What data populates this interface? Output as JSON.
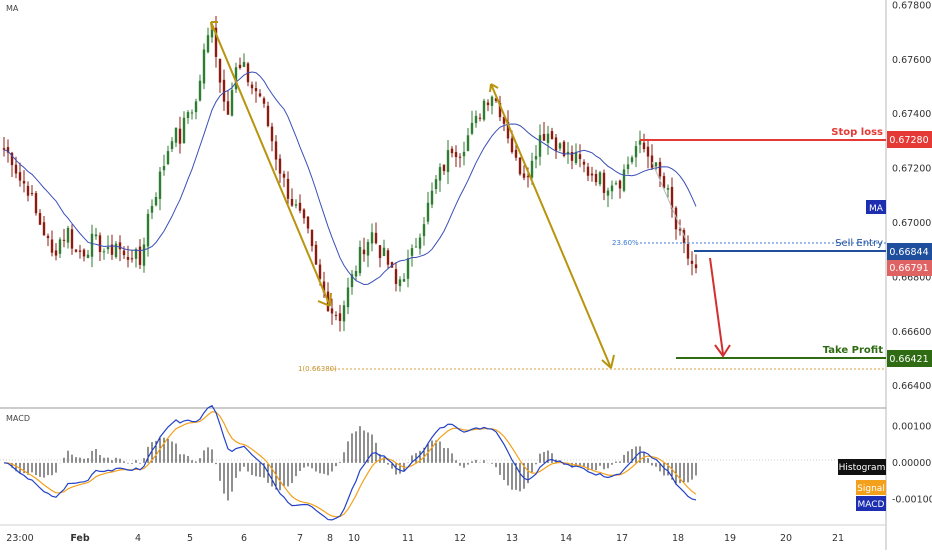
{
  "panels": {
    "main_title": "MA",
    "macd_title": "MACD"
  },
  "colors": {
    "up_candle": "#2f7d32",
    "down_candle": "#8b1c12",
    "ma": "#3a4fb8",
    "arrow_gold": "#b8940f",
    "stop": "#e53935",
    "entry": "#1f4f9c",
    "price": "#e06363",
    "profit": "#2e6b12",
    "macd_line": "#2342c8",
    "signal_line": "#f3a11c",
    "histogram": "#222222"
  },
  "price_axis": {
    "ticks": [
      "0.67800",
      "0.67600",
      "0.67400",
      "0.67200",
      "0.67000",
      "0.66800",
      "0.66600",
      "0.66400"
    ],
    "range": [
      0.6632,
      0.6782
    ]
  },
  "macd_axis": {
    "ticks": [
      "0.00100",
      "0.00000",
      "-0.00100"
    ],
    "range": [
      -0.0017,
      0.0015
    ]
  },
  "time_axis": {
    "labels": [
      "23:00",
      "Feb",
      "4",
      "5",
      "6",
      "7",
      "8",
      "10",
      "11",
      "12",
      "13",
      "14",
      "17",
      "18",
      "19",
      "20",
      "21"
    ]
  },
  "levels": {
    "stop_loss": {
      "label": "Stop loss",
      "value": "0.67280"
    },
    "sell_entry": {
      "label": "Sell Entry",
      "value": "0.66844"
    },
    "current": {
      "value": "0.66791"
    },
    "take_profit": {
      "label": "Take Profit",
      "value": "0.66421"
    },
    "fib_236": {
      "label": "23.60%"
    },
    "fib_1": {
      "label": "1(0.66380)",
      "value": "0.66380"
    }
  },
  "badges": {
    "ma": "MA",
    "histogram": "Histogram",
    "signal": "Signal",
    "macd": "MACD"
  },
  "chart_data": {
    "type": "candlestick",
    "instrument_title": "",
    "ohlc_close_path": {
      "x_index": [
        0,
        8,
        16,
        24,
        32,
        40,
        48,
        56,
        64,
        72,
        80,
        88,
        96,
        104,
        112,
        120,
        128,
        136,
        144,
        152,
        160,
        168,
        176,
        184,
        192,
        200,
        208,
        216,
        224,
        232,
        240,
        248,
        256,
        264,
        272,
        280,
        288,
        296,
        304,
        312,
        320,
        328,
        336,
        344,
        352,
        360,
        368,
        376,
        384,
        392,
        400,
        408,
        416,
        424,
        432,
        440,
        448,
        456,
        464,
        472,
        480,
        488,
        496,
        504,
        512,
        520,
        528,
        536,
        544,
        552,
        560,
        568,
        576,
        584,
        592,
        600,
        608,
        616,
        624,
        632,
        640,
        648,
        656,
        664,
        672,
        680,
        688,
        696
      ],
      "close": [
        0.6727,
        0.6724,
        0.6716,
        0.6713,
        0.6703,
        0.6697,
        0.6688,
        0.6694,
        0.6697,
        0.6689,
        0.669,
        0.6693,
        0.6692,
        0.6688,
        0.6693,
        0.6687,
        0.6689,
        0.6685,
        0.6703,
        0.6712,
        0.6722,
        0.6733,
        0.6731,
        0.6741,
        0.6744,
        0.6762,
        0.6774,
        0.6752,
        0.6743,
        0.6756,
        0.6756,
        0.675,
        0.6747,
        0.6736,
        0.6725,
        0.6715,
        0.6708,
        0.6702,
        0.6695,
        0.6683,
        0.6674,
        0.6668,
        0.6666,
        0.6675,
        0.6684,
        0.6692,
        0.6696,
        0.669,
        0.6685,
        0.6677,
        0.6682,
        0.6688,
        0.6698,
        0.6706,
        0.6715,
        0.6721,
        0.6728,
        0.6727,
        0.6732,
        0.6737,
        0.6745,
        0.6748,
        0.6742,
        0.6733,
        0.6722,
        0.6719,
        0.6722,
        0.6733,
        0.6733,
        0.673,
        0.6725,
        0.6724,
        0.6722,
        0.6719,
        0.6718,
        0.6714,
        0.6716,
        0.6716,
        0.6722,
        0.6728,
        0.6727,
        0.6723,
        0.6716,
        0.671,
        0.6698,
        0.669,
        0.6685,
        0.6679
      ]
    },
    "macd_series": {
      "series": [
        {
          "name": "MACD",
          "color": "#2342c8"
        },
        {
          "name": "Signal",
          "color": "#f3a11c"
        },
        {
          "name": "Histogram",
          "color": "#222222"
        }
      ]
    },
    "annotations": [
      "Stop loss 0.67280",
      "Sell Entry 0.66844",
      "Take Profit 0.66421",
      "23.60%",
      "1(0.66380)"
    ]
  }
}
